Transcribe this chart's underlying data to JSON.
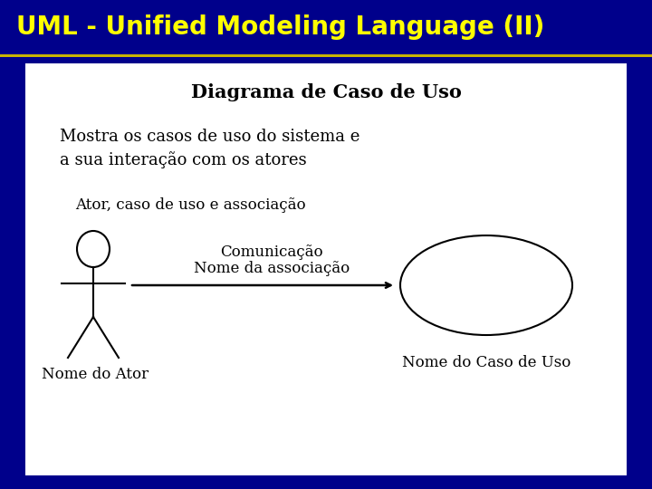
{
  "title": "UML - Unified Modeling Language (II)",
  "title_color": "#FFFF00",
  "title_bg_color": "#00008B",
  "slide_bg_color": "#00008B",
  "title_fontsize": 20,
  "content_bg_color": "#FFFFFF",
  "diagram_title": "Diagrama de Caso de Uso",
  "diagram_title_fontsize": 15,
  "subtitle_text": "Mostra os casos de uso do sistema e\na sua interação com os atores",
  "subtitle_fontsize": 13,
  "section_label": "Ator, caso de uso e associação",
  "section_label_fontsize": 12,
  "arrow_label1": "Comunicação",
  "arrow_label2": "Nome da associação",
  "arrow_label_fontsize": 12,
  "actor_label": "Nome do Ator",
  "actor_label_fontsize": 12,
  "use_case_label": "Nome do Caso de Uso",
  "use_case_label_fontsize": 12
}
